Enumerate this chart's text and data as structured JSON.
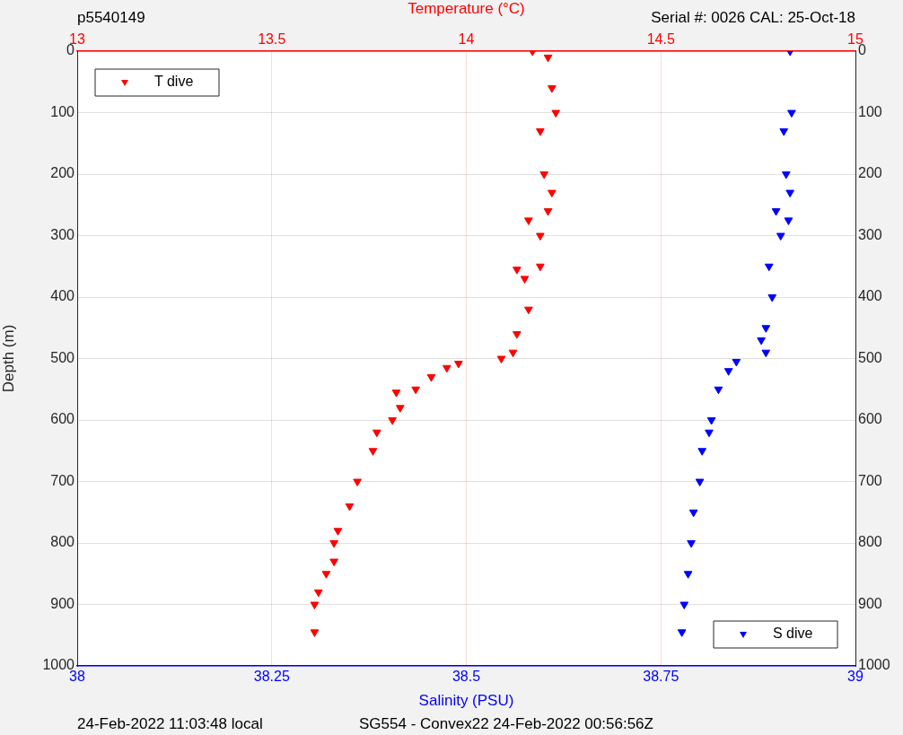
{
  "chart_data": {
    "type": "scatter",
    "xlabel": "Salinity (PSU)",
    "x2label": "Temperature (°C)",
    "ylabel": "Depth (m)",
    "xlim": [
      38,
      39
    ],
    "xticks": [
      38,
      38.25,
      38.5,
      38.75,
      39
    ],
    "x2lim": [
      13,
      15
    ],
    "x2ticks": [
      13,
      13.5,
      14,
      14.5,
      15
    ],
    "ylim": [
      1000,
      0
    ],
    "yticks": [
      0,
      100,
      200,
      300,
      400,
      500,
      600,
      700,
      800,
      900,
      1000
    ],
    "y2lim": [
      1000,
      0
    ],
    "y2ticks": [
      0,
      100,
      200,
      300,
      400,
      500,
      600,
      700,
      800,
      900,
      1000
    ],
    "grid": true,
    "marker": "triangle",
    "legend": "top left",
    "series": [
      {
        "name": "T dive",
        "color": "#ff0000",
        "axis": "x2",
        "x": [
          14.17,
          14.21,
          14.22,
          14.23,
          14.19,
          14.2,
          14.22,
          14.21,
          14.16,
          14.19,
          14.19,
          14.13,
          14.15,
          14.16,
          14.13,
          14.12,
          14.09,
          13.98,
          13.95,
          13.91,
          13.87,
          13.82,
          13.83,
          13.81,
          13.77,
          13.76,
          13.72,
          13.7,
          13.67,
          13.66,
          13.66,
          13.64,
          13.62,
          13.61,
          13.61
        ],
        "values": [
          0,
          10,
          60,
          100,
          130,
          200,
          230,
          260,
          275,
          300,
          350,
          355,
          370,
          420,
          460,
          490,
          500,
          508,
          515,
          530,
          550,
          555,
          580,
          600,
          620,
          650,
          700,
          740,
          780,
          800,
          830,
          850,
          880,
          900,
          945
        ]
      },
      {
        "name": "S dive",
        "color": "#0000ff",
        "x": [
          38.916,
          38.918,
          38.908,
          38.911,
          38.916,
          38.898,
          38.914,
          38.904,
          38.889,
          38.893,
          38.885,
          38.879,
          38.885,
          38.847,
          38.837,
          38.824,
          38.815,
          38.812,
          38.803,
          38.8,
          38.792,
          38.789,
          38.785,
          38.78,
          38.777
        ],
        "values": [
          0,
          100,
          130,
          200,
          230,
          260,
          275,
          300,
          350,
          400,
          450,
          470,
          490,
          505,
          520,
          550,
          600,
          620,
          650,
          700,
          750,
          800,
          850,
          900,
          945
        ]
      }
    ],
    "annotations": [
      "p5540149",
      "Serial #: 0026 CAL: 25-Oct-18",
      "24-Feb-2022 11:03:48 local",
      "SG554 - Convex22 24-Feb-2022 00:56:56Z"
    ]
  }
}
